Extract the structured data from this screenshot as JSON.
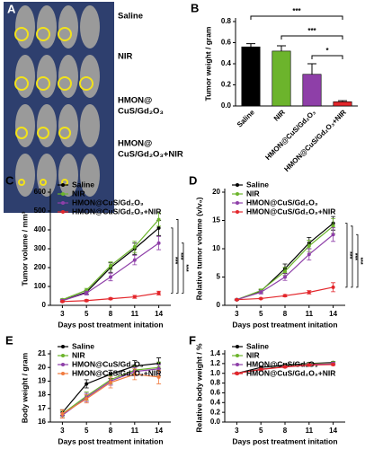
{
  "photo": {
    "panel": "A",
    "labels": [
      [
        "Saline"
      ],
      [
        "NIR"
      ],
      [
        "HMON@",
        "CuS/Gd₂O₃"
      ],
      [
        "HMON@",
        "CuS/Gd₂O₃+NIR"
      ]
    ]
  },
  "chart_data": [
    {
      "panel": "B",
      "type": "bar",
      "ylabel": "Tumor weight / gram",
      "categories": [
        "Saline",
        "NIR",
        "HMON@CuS/Gd₂O₃",
        "HMON@CuS/Gd₂O₃+NIR"
      ],
      "values": [
        0.56,
        0.52,
        0.3,
        0.04
      ],
      "errors": [
        0.03,
        0.05,
        0.1,
        0.01
      ],
      "colors": [
        "#000000",
        "#6cb42c",
        "#8e3fa8",
        "#e3262b"
      ],
      "ylim": [
        0,
        0.8
      ],
      "yticks": [
        {
          "value": 0,
          "label": "0.0"
        },
        0.2,
        0.4,
        0.6,
        0.8
      ],
      "annotations": [
        "***",
        "***",
        "*"
      ]
    },
    {
      "panel": "C",
      "type": "line",
      "xlabel": "Days post treatment initation",
      "ylabel": "Tumor volume / mm³",
      "categories": [
        "3",
        "5",
        "8",
        "11",
        "14"
      ],
      "legend": "upper left",
      "series": [
        {
          "name": "Saline",
          "color": "#000000",
          "values": [
            25,
            70,
            200,
            300,
            410
          ],
          "errors": [
            5,
            10,
            25,
            30,
            40
          ]
        },
        {
          "name": "NIR",
          "color": "#6cb42c",
          "values": [
            30,
            80,
            210,
            310,
            455
          ],
          "errors": [
            5,
            10,
            20,
            30,
            35
          ]
        },
        {
          "name": "HMON@CuS/Gd₂O₃",
          "color": "#8e3fa8",
          "values": [
            25,
            65,
            150,
            240,
            330
          ],
          "errors": [
            5,
            10,
            20,
            25,
            35
          ]
        },
        {
          "name": "HMON@CuS/Gd₂O₃+NIR",
          "color": "#e3262b",
          "values": [
            20,
            25,
            35,
            45,
            65
          ],
          "errors": [
            3,
            5,
            5,
            8,
            10
          ]
        }
      ],
      "ylim": [
        0,
        600
      ],
      "yticks": [
        0,
        100,
        200,
        300,
        400,
        500,
        600
      ],
      "annotations": [
        "***",
        "***",
        "***"
      ]
    },
    {
      "panel": "D",
      "type": "line",
      "xlabel": "Days post treatment initation",
      "ylabel": "Relative tumor volume (v/v₀)",
      "categories": [
        "3",
        "5",
        "8",
        "11",
        "14"
      ],
      "legend": "upper left",
      "series": [
        {
          "name": "Saline",
          "color": "#000000",
          "values": [
            1,
            2.5,
            6.5,
            11,
            14.5
          ],
          "errors": [
            0.1,
            0.3,
            0.8,
            1,
            1.2
          ]
        },
        {
          "name": "NIR",
          "color": "#6cb42c",
          "values": [
            1,
            2.6,
            6,
            10.5,
            14
          ],
          "errors": [
            0.1,
            0.3,
            0.7,
            1,
            1.3
          ]
        },
        {
          "name": "HMON@CuS/Gd₂O₃",
          "color": "#8e3fa8",
          "values": [
            1,
            2.3,
            5,
            9,
            12.5
          ],
          "errors": [
            0.1,
            0.3,
            0.6,
            1,
            1.2
          ]
        },
        {
          "name": "HMON@CuS/Gd₂O₃+NIR",
          "color": "#e3262b",
          "values": [
            1,
            1.2,
            1.7,
            2.3,
            3.2
          ],
          "errors": [
            0.05,
            0.1,
            0.2,
            0.3,
            0.8
          ]
        }
      ],
      "ylim": [
        0,
        20
      ],
      "yticks": [
        0,
        5,
        10,
        15,
        20
      ],
      "annotations": [
        "***",
        "***",
        "***"
      ]
    },
    {
      "panel": "E",
      "type": "line",
      "xlabel": "Days post treatment initation",
      "ylabel": "Body weight / gram",
      "categories": [
        "3",
        "5",
        "8",
        "11",
        "14"
      ],
      "legend": "upper left",
      "series": [
        {
          "name": "Saline",
          "color": "#000000",
          "values": [
            16.7,
            18.8,
            19.5,
            20.1,
            20.3
          ],
          "errors": [
            0.2,
            0.3,
            0.3,
            0.4,
            0.4
          ]
        },
        {
          "name": "NIR",
          "color": "#6cb42c",
          "values": [
            16.6,
            17.9,
            19.1,
            19.8,
            20.0
          ],
          "errors": [
            0.2,
            0.3,
            0.3,
            0.3,
            0.4
          ]
        },
        {
          "name": "HMON@CuS/Gd₂O₃",
          "color": "#8e3fa8",
          "values": [
            16.5,
            17.8,
            19.0,
            19.7,
            19.9
          ],
          "errors": [
            0.2,
            0.3,
            0.3,
            0.3,
            0.3
          ]
        },
        {
          "name": "HMON@CuS/Gd₂O₃+NIR",
          "color": "#f07b3f",
          "values": [
            16.6,
            17.7,
            18.9,
            19.5,
            19.3
          ],
          "errors": [
            0.3,
            0.3,
            0.4,
            0.4,
            0.5
          ]
        }
      ],
      "ylim": [
        16,
        21
      ],
      "yticks": [
        16,
        17,
        18,
        19,
        20,
        21
      ]
    },
    {
      "panel": "F",
      "type": "line",
      "xlabel": "Days post treatment initation",
      "ylabel": "Relative body weight / %",
      "categories": [
        "3",
        "5",
        "8",
        "11",
        "14"
      ],
      "legend": "upper left",
      "series": [
        {
          "name": "Saline",
          "color": "#000000",
          "values": [
            1.0,
            1.12,
            1.17,
            1.2,
            1.22
          ],
          "errors": [
            0.01,
            0.02,
            0.02,
            0.02,
            0.02
          ]
        },
        {
          "name": "NIR",
          "color": "#6cb42c",
          "values": [
            1.0,
            1.08,
            1.15,
            1.19,
            1.21
          ],
          "errors": [
            0.01,
            0.02,
            0.02,
            0.02,
            0.03
          ]
        },
        {
          "name": "HMON@CuS/Gd₂O₃",
          "color": "#8e3fa8",
          "values": [
            1.0,
            1.08,
            1.14,
            1.18,
            1.2
          ],
          "errors": [
            0.01,
            0.02,
            0.02,
            0.02,
            0.02
          ]
        },
        {
          "name": "HMON@CuS/Gd₂O₃+NIR",
          "color": "#e3262b",
          "values": [
            1.0,
            1.08,
            1.13,
            1.17,
            1.18
          ],
          "errors": [
            0.01,
            0.02,
            0.02,
            0.02,
            0.02
          ]
        }
      ],
      "ylim": [
        0,
        1.4
      ],
      "yticks": [
        {
          "value": 0,
          "label": "0.0"
        },
        0.2,
        0.4,
        0.6,
        0.8,
        {
          "value": 1,
          "label": "1.0"
        },
        1.2,
        1.4
      ]
    }
  ]
}
